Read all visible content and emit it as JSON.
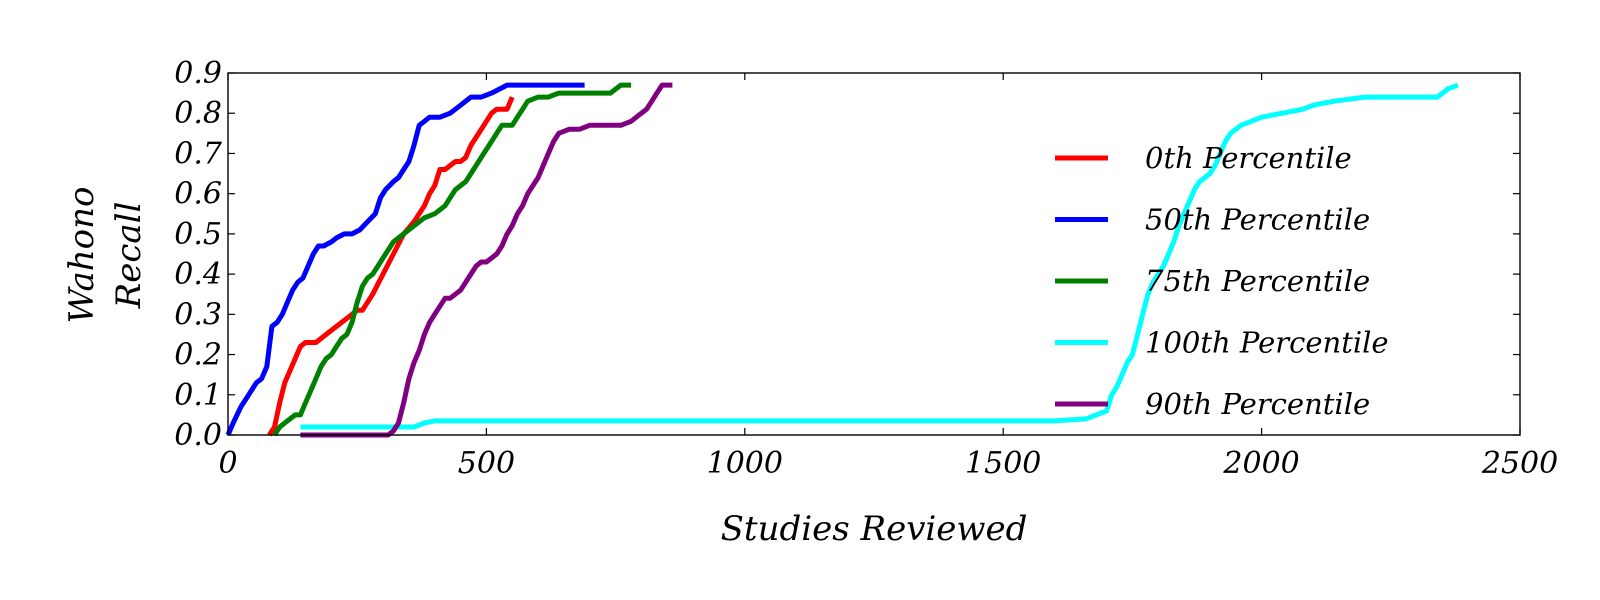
{
  "chart_data": {
    "type": "line",
    "xlabel": "Studies Reviewed",
    "ylabel_lines": [
      "Wahono",
      "Recall"
    ],
    "xlim": [
      0,
      2500
    ],
    "ylim": [
      0,
      0.9
    ],
    "xticks": [
      0,
      500,
      1000,
      1500,
      2000,
      2500
    ],
    "yticks": [
      0.0,
      0.1,
      0.2,
      0.3,
      0.4,
      0.5,
      0.6,
      0.7,
      0.8,
      0.9
    ],
    "xtick_labels": [
      "0",
      "500",
      "1000",
      "1500",
      "2000",
      "2500"
    ],
    "ytick_labels": [
      "0.0",
      "0.1",
      "0.2",
      "0.3",
      "0.4",
      "0.5",
      "0.6",
      "0.7",
      "0.8",
      "0.9"
    ],
    "grid": false,
    "legend_position": "right",
    "series": [
      {
        "name": "0th Percentile",
        "color": "#ff0000",
        "x": [
          80,
          90,
          100,
          110,
          120,
          140,
          150,
          170,
          190,
          210,
          220,
          250,
          260,
          270,
          280,
          300,
          320,
          340,
          360,
          380,
          390,
          400,
          410,
          420,
          440,
          450,
          460,
          470,
          480,
          500,
          510,
          520,
          540,
          550
        ],
        "y": [
          0,
          0.02,
          0.08,
          0.13,
          0.16,
          0.22,
          0.23,
          0.23,
          0.25,
          0.27,
          0.28,
          0.31,
          0.31,
          0.33,
          0.35,
          0.4,
          0.45,
          0.5,
          0.53,
          0.57,
          0.6,
          0.62,
          0.66,
          0.66,
          0.68,
          0.68,
          0.69,
          0.72,
          0.74,
          0.78,
          0.8,
          0.81,
          0.81,
          0.84
        ]
      },
      {
        "name": "50th Percentile",
        "color": "#0000ff",
        "x": [
          0,
          10,
          25,
          40,
          55,
          65,
          75,
          85,
          95,
          105,
          115,
          125,
          135,
          145,
          155,
          165,
          175,
          185,
          200,
          210,
          225,
          240,
          255,
          270,
          285,
          295,
          305,
          320,
          330,
          340,
          350,
          360,
          370,
          380,
          390,
          410,
          430,
          450,
          470,
          490,
          510,
          540,
          550,
          570,
          600,
          690
        ],
        "y": [
          0,
          0.03,
          0.07,
          0.1,
          0.13,
          0.14,
          0.17,
          0.27,
          0.28,
          0.3,
          0.33,
          0.36,
          0.38,
          0.39,
          0.42,
          0.45,
          0.47,
          0.47,
          0.48,
          0.49,
          0.5,
          0.5,
          0.51,
          0.53,
          0.55,
          0.59,
          0.61,
          0.63,
          0.64,
          0.66,
          0.68,
          0.72,
          0.77,
          0.78,
          0.79,
          0.79,
          0.8,
          0.82,
          0.84,
          0.84,
          0.85,
          0.87,
          0.87,
          0.87,
          0.87,
          0.87
        ]
      },
      {
        "name": "75th Percentile",
        "color": "#008000",
        "x": [
          90,
          100,
          110,
          120,
          130,
          140,
          150,
          160,
          170,
          180,
          190,
          200,
          210,
          220,
          230,
          240,
          250,
          260,
          270,
          280,
          290,
          300,
          310,
          320,
          340,
          360,
          370,
          380,
          400,
          410,
          420,
          430,
          440,
          450,
          460,
          470,
          480,
          490,
          500,
          510,
          520,
          530,
          540,
          550,
          560,
          570,
          580,
          600,
          610,
          620,
          640,
          680,
          700,
          720,
          740,
          750,
          760,
          780
        ],
        "y": [
          0,
          0.02,
          0.03,
          0.04,
          0.05,
          0.05,
          0.08,
          0.11,
          0.14,
          0.17,
          0.19,
          0.2,
          0.22,
          0.24,
          0.25,
          0.28,
          0.33,
          0.37,
          0.39,
          0.4,
          0.42,
          0.44,
          0.46,
          0.48,
          0.5,
          0.52,
          0.53,
          0.54,
          0.55,
          0.56,
          0.57,
          0.59,
          0.61,
          0.62,
          0.63,
          0.65,
          0.67,
          0.69,
          0.71,
          0.73,
          0.75,
          0.77,
          0.77,
          0.77,
          0.79,
          0.81,
          0.83,
          0.84,
          0.84,
          0.84,
          0.85,
          0.85,
          0.85,
          0.85,
          0.85,
          0.86,
          0.87,
          0.87
        ]
      },
      {
        "name": "100th Percentile",
        "color": "#00ffff",
        "x": [
          140,
          150,
          300,
          360,
          380,
          400,
          600,
          800,
          1000,
          1200,
          1400,
          1600,
          1660,
          1680,
          1700,
          1710,
          1720,
          1730,
          1740,
          1750,
          1760,
          1770,
          1780,
          1790,
          1800,
          1810,
          1820,
          1830,
          1840,
          1850,
          1860,
          1870,
          1880,
          1890,
          1900,
          1910,
          1920,
          1930,
          1940,
          1950,
          1960,
          1980,
          2000,
          2040,
          2080,
          2100,
          2140,
          2200,
          2300,
          2340,
          2360,
          2380
        ],
        "y": [
          0.02,
          0.02,
          0.02,
          0.02,
          0.03,
          0.035,
          0.035,
          0.035,
          0.035,
          0.035,
          0.035,
          0.035,
          0.04,
          0.05,
          0.06,
          0.1,
          0.12,
          0.15,
          0.18,
          0.2,
          0.25,
          0.3,
          0.35,
          0.38,
          0.4,
          0.42,
          0.45,
          0.48,
          0.52,
          0.55,
          0.58,
          0.61,
          0.63,
          0.64,
          0.65,
          0.67,
          0.7,
          0.73,
          0.75,
          0.76,
          0.77,
          0.78,
          0.79,
          0.8,
          0.81,
          0.82,
          0.83,
          0.84,
          0.84,
          0.84,
          0.86,
          0.87
        ]
      },
      {
        "name": "90th Percentile",
        "color": "#800080",
        "x": [
          140,
          310,
          320,
          330,
          340,
          350,
          360,
          370,
          380,
          390,
          400,
          410,
          420,
          430,
          440,
          450,
          460,
          470,
          480,
          490,
          500,
          510,
          520,
          530,
          540,
          550,
          560,
          570,
          580,
          590,
          600,
          610,
          620,
          630,
          640,
          660,
          680,
          700,
          720,
          740,
          760,
          780,
          800,
          810,
          820,
          830,
          840,
          860
        ],
        "y": [
          0,
          0,
          0.01,
          0.03,
          0.08,
          0.14,
          0.18,
          0.21,
          0.25,
          0.28,
          0.3,
          0.32,
          0.34,
          0.34,
          0.35,
          0.36,
          0.38,
          0.4,
          0.42,
          0.43,
          0.43,
          0.44,
          0.45,
          0.47,
          0.5,
          0.52,
          0.55,
          0.57,
          0.6,
          0.62,
          0.64,
          0.67,
          0.7,
          0.73,
          0.75,
          0.76,
          0.76,
          0.77,
          0.77,
          0.77,
          0.77,
          0.78,
          0.8,
          0.81,
          0.83,
          0.85,
          0.87,
          0.87
        ]
      }
    ]
  }
}
